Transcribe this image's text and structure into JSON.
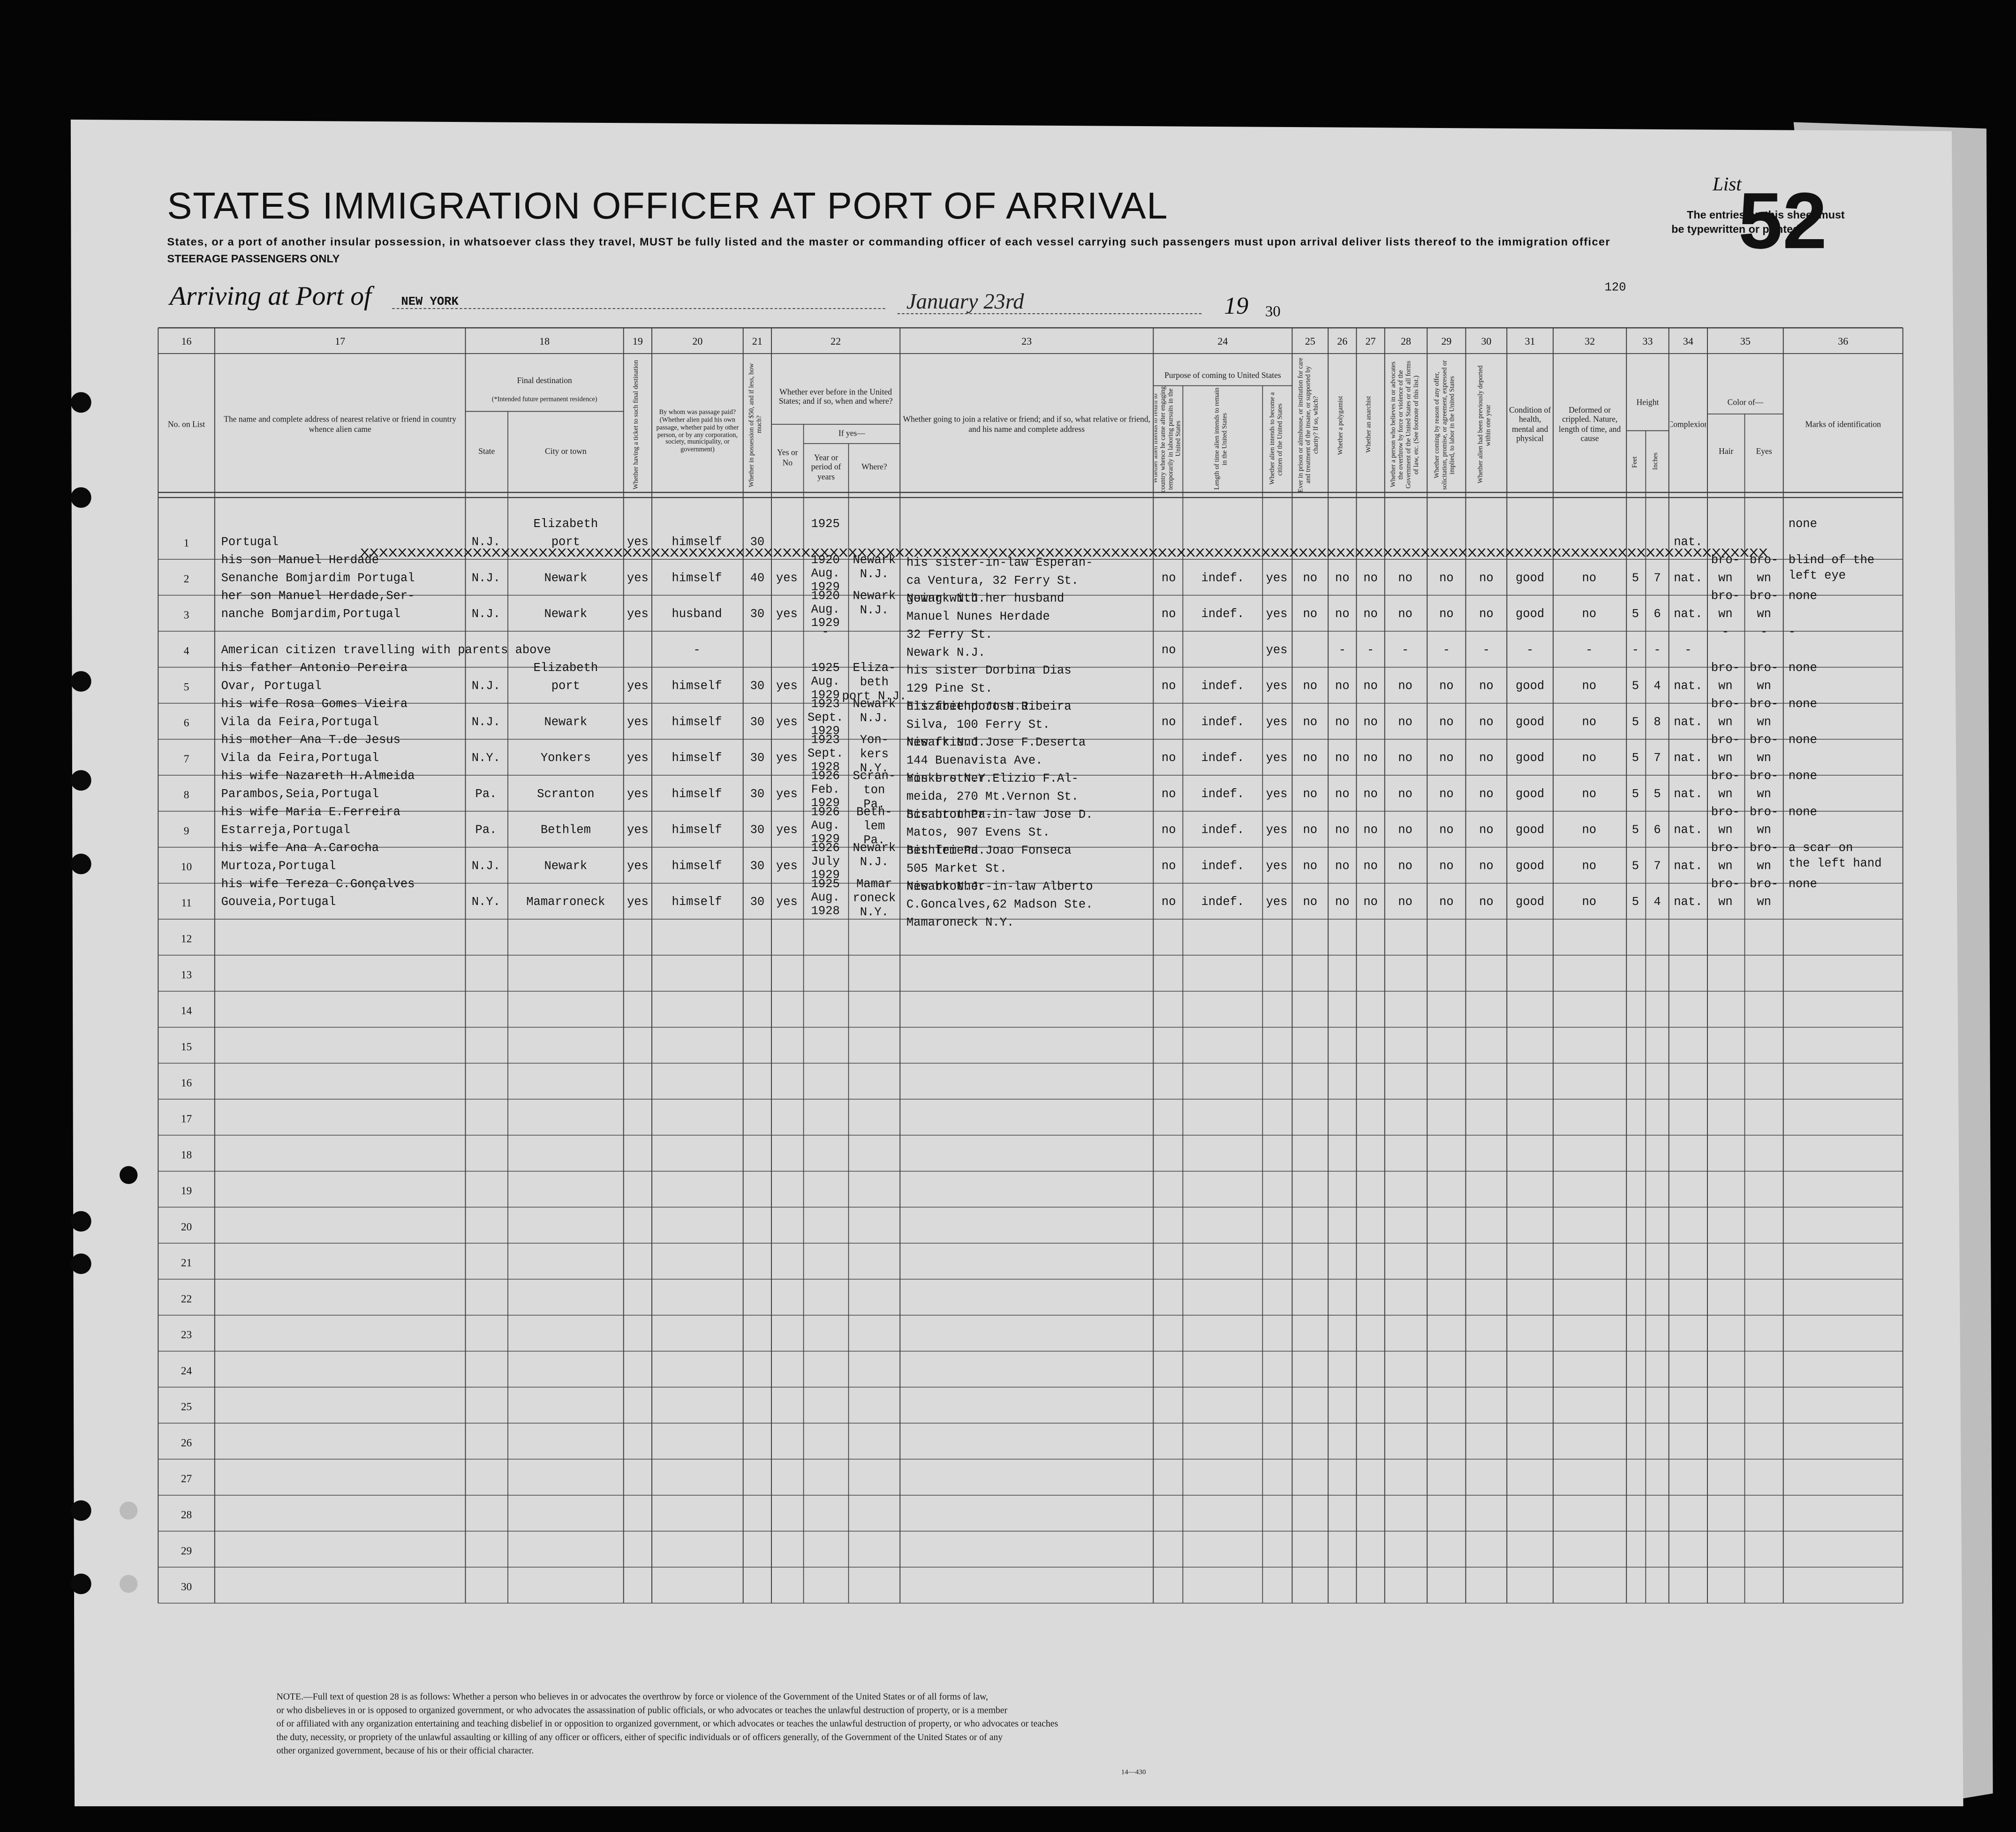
{
  "header": {
    "title": "STATES IMMIGRATION OFFICER AT PORT OF ARRIVAL",
    "subtitle": "States, or a port of another insular possession, in whatsoever class they travel, MUST be fully listed and the master or commanding officer of each vessel carrying such passengers must upon arrival deliver lists thereof to the immigration officer",
    "class_note": "STEERAGE PASSENGERS ONLY",
    "list_label": "List",
    "list_number": "52",
    "entries_note": [
      "The entries on this sheet must",
      "be typewritten or printed"
    ],
    "sheet_number": "120",
    "port_label": "Arriving at Port of",
    "port": "NEW YORK",
    "date": "January 23rd",
    "year_prefix": "19",
    "year_suffix": "30"
  },
  "columns": [
    {
      "number": "16",
      "heading": "No. on List"
    },
    {
      "number": "17",
      "heading": "The name and complete address of nearest relative or friend in country whence alien came"
    },
    {
      "number": "18",
      "heading": "Final destination",
      "sub": [
        "(*Intended future permanent residence)",
        "State",
        "City or town"
      ]
    },
    {
      "number": "19",
      "heading": "Whether having a ticket to such final destination"
    },
    {
      "number": "20",
      "heading": "By whom was passage paid? (Whether alien paid his own passage, whether paid by other person, or by any corporation, society, municipality, or government)"
    },
    {
      "number": "21",
      "heading": "Whether in possession of $50, and if less, how much?"
    },
    {
      "number": "22",
      "heading": "Whether ever before in the United States; and if so, when and where?",
      "sub": [
        "If yes—",
        "Yes or No",
        "Year or period of years",
        "Where?"
      ]
    },
    {
      "number": "23",
      "heading": "Whether going to join a relative or friend; and if so, what relative or friend, and his name and complete address"
    },
    {
      "number": "24",
      "heading": "Purpose of coming to United States",
      "sub": [
        "Whether alien intends to return to country whence he came after engaging temporarily in laboring pursuits in the United States",
        "Length of time alien intends to remain in the United States",
        "Whether alien intends to become a citizen of the United States"
      ]
    },
    {
      "number": "25",
      "heading": "Ever in prison or almshouse, or institution for care and treatment of the insane, or supported by charity? If so, which?"
    },
    {
      "number": "26",
      "heading": "Whether a polygamist"
    },
    {
      "number": "27",
      "heading": "Whether an anarchist"
    },
    {
      "number": "28",
      "heading": "Whether a person who believes in or advocates the overthrow by force or violence of the Government of the United States or of all forms of law, etc. (See footnote of this list.)"
    },
    {
      "number": "29",
      "heading": "Whether coming by reason of any offer, solicitation, promise, or agreement, expressed or implied, to labor in the United States"
    },
    {
      "number": "30",
      "heading": "Whether alien had been previously deported within one year"
    },
    {
      "number": "31",
      "heading": "Condition of health, mental and physical"
    },
    {
      "number": "32",
      "heading": "Deformed or crippled. Nature, length of time, and cause"
    },
    {
      "number": "33",
      "heading": "Height",
      "sub": [
        "Feet",
        "Inches"
      ]
    },
    {
      "number": "34",
      "heading": "Complexion"
    },
    {
      "number": "35",
      "heading": "Color of—",
      "sub": [
        "Hair",
        "Eyes"
      ]
    },
    {
      "number": "36",
      "heading": "Marks of identification"
    }
  ],
  "rows": [
    {
      "number": 1,
      "overtype": "XXXXXXXXXXXXXXXXXXXXXXXXXXXXXXXXXXXXXXXXXXXXXXXXXXXXXXXXXXXXXXXXXXXXXXXXXXXXXXXXXXXXXXXXXXXXXXXXXXXXXXXXXXXXXXXXXXXXXXXXXXXXXXXXXXXXXXXXXXXXXXXXXXXXXX",
      "cells": {
        "relative": [
          "Portugal"
        ],
        "state": "N.J.",
        "city": [
          "Elizabeth",
          "port"
        ],
        "ticket": "yes",
        "paid": "himself",
        "money": "30",
        "years": [
          "1925"
        ],
        "complexion": "nat.",
        "marks": [
          "none"
        ]
      }
    },
    {
      "number": 2,
      "cells": {
        "relative": [
          "his son Manuel Herdade",
          "Senanche Bomjardim Portugal"
        ],
        "state": "N.J.",
        "city": [
          "Newark"
        ],
        "ticket": "yes",
        "paid": "himself",
        "money": "40",
        "before": "yes",
        "years": [
          "1920",
          "Aug.",
          "1929"
        ],
        "where": [
          "Newark",
          "N.J."
        ],
        "joining": [
          "his sister-in-law Esperan-",
          "ca Ventura, 32 Ferry St.",
          "Newark N.J."
        ],
        "p24a": "no",
        "p24b": "indef.",
        "p24c": "yes",
        "q25": "no",
        "q26": "no",
        "q27": "no",
        "q28": "no",
        "q29": "no",
        "q30": "no",
        "health": "good",
        "deformed": "no",
        "feet": "5",
        "inches": "7",
        "complexion": "nat.",
        "hair": [
          "bro-",
          "wn"
        ],
        "eyes": [
          "bro-",
          "wn"
        ],
        "marks": [
          "blind of the",
          "left eye"
        ]
      }
    },
    {
      "number": 3,
      "cells": {
        "relative": [
          "her son Manuel Herdade,Ser-",
          "nanche Bomjardim,Portugal"
        ],
        "state": "N.J.",
        "city": [
          "Newark"
        ],
        "ticket": "yes",
        "paid": "husband",
        "money": "30",
        "before": "yes",
        "years": [
          "1920",
          "Aug.",
          "1929"
        ],
        "where": [
          "Newark",
          "N.J."
        ],
        "joining": [
          "going with her husband",
          "Manuel Nunes Herdade",
          "32 Ferry St.",
          "Newark N.J."
        ],
        "p24a": "no",
        "p24b": "indef.",
        "p24c": "yes",
        "q25": "no",
        "q26": "no",
        "q27": "no",
        "q28": "no",
        "q29": "no",
        "q30": "no",
        "health": "good",
        "deformed": "no",
        "feet": "5",
        "inches": "6",
        "complexion": "nat.",
        "hair": [
          "bro-",
          "wn"
        ],
        "eyes": [
          "bro-",
          "wn"
        ],
        "marks": [
          "none"
        ]
      }
    },
    {
      "number": 4,
      "cells": {
        "relative": [
          "American citizen travelling with parents above"
        ],
        "paid": "-",
        "years": [
          "-"
        ],
        "p24a": "no",
        "p24c": "yes",
        "q26": "-",
        "q27": "-",
        "q28": "-",
        "q29": "-",
        "q30": "-",
        "health": "-",
        "deformed": "-",
        "feet": "-",
        "inches": "-",
        "complexion": "-",
        "hair": [
          "-"
        ],
        "eyes": [
          "-"
        ],
        "marks": [
          "-"
        ]
      }
    },
    {
      "number": 5,
      "cells": {
        "relative": [
          "his father Antonio Pereira",
          "Ovar, Portugal"
        ],
        "state": "N.J.",
        "city": [
          "Elizabeth",
          "port"
        ],
        "ticket": "yes",
        "paid": "himself",
        "money": "30",
        "before": "yes",
        "years": [
          "1925",
          "Aug.",
          "1929"
        ],
        "where": [
          "Eliza-",
          "beth",
          "port N.J."
        ],
        "joining": [
          "his sister Dorbina Dias",
          "129 Pine St.",
          "Elizabethport N.J."
        ],
        "p24a": "no",
        "p24b": "indef.",
        "p24c": "yes",
        "q25": "no",
        "q26": "no",
        "q27": "no",
        "q28": "no",
        "q29": "no",
        "q30": "no",
        "health": "good",
        "deformed": "no",
        "feet": "5",
        "inches": "4",
        "complexion": "nat.",
        "hair": [
          "bro-",
          "wn"
        ],
        "eyes": [
          "bro-",
          "wn"
        ],
        "marks": [
          "none"
        ]
      }
    },
    {
      "number": 6,
      "cells": {
        "relative": [
          "his wife Rosa Gomes Vieira",
          "Vila da Feira,Portugal"
        ],
        "state": "N.J.",
        "city": [
          "Newark"
        ],
        "ticket": "yes",
        "paid": "himself",
        "money": "30",
        "before": "yes",
        "years": [
          "1923",
          "Sept.",
          "1929"
        ],
        "where": [
          "Newark",
          "N.J."
        ],
        "joining": [
          "his friend Jose Ribeira",
          "Silva, 100 Ferry St.",
          "Newark N.J."
        ],
        "p24a": "no",
        "p24b": "indef.",
        "p24c": "yes",
        "q25": "no",
        "q26": "no",
        "q27": "no",
        "q28": "no",
        "q29": "no",
        "q30": "no",
        "health": "good",
        "deformed": "no",
        "feet": "5",
        "inches": "8",
        "complexion": "nat.",
        "hair": [
          "bro-",
          "wn"
        ],
        "eyes": [
          "bro-",
          "wn"
        ],
        "marks": [
          "none"
        ]
      }
    },
    {
      "number": 7,
      "cells": {
        "relative": [
          "his mother Ana T.de Jesus",
          "Vila da Feira,Portugal"
        ],
        "state": "N.Y.",
        "city": [
          "Yonkers"
        ],
        "ticket": "yes",
        "paid": "himself",
        "money": "30",
        "before": "yes",
        "years": [
          "1923",
          "Sept.",
          "1928"
        ],
        "where": [
          "Yon-",
          "kers",
          "N.Y."
        ],
        "joining": [
          "his friend Jose F.Deserta",
          "144 Buenavista Ave.",
          "Yonkers N.Y."
        ],
        "p24a": "no",
        "p24b": "indef.",
        "p24c": "yes",
        "q25": "no",
        "q26": "no",
        "q27": "no",
        "q28": "no",
        "q29": "no",
        "q30": "no",
        "health": "good",
        "deformed": "no",
        "feet": "5",
        "inches": "7",
        "complexion": "nat.",
        "hair": [
          "bro-",
          "wn"
        ],
        "eyes": [
          "bro-",
          "wn"
        ],
        "marks": [
          "none"
        ]
      }
    },
    {
      "number": 8,
      "cells": {
        "relative": [
          "his wife Nazareth H.Almeida",
          "Parambos,Seia,Portugal"
        ],
        "state": "Pa.",
        "city": [
          "Scranton"
        ],
        "ticket": "yes",
        "paid": "himself",
        "money": "30",
        "before": "yes",
        "years": [
          "1926",
          "Feb.",
          "1929"
        ],
        "where": [
          "Scran-",
          "ton",
          "Pa."
        ],
        "joining": [
          "his brother Elizio F.Al-",
          "meida, 270 Mt.Vernon St.",
          "Scranton Pa."
        ],
        "p24a": "no",
        "p24b": "indef.",
        "p24c": "yes",
        "q25": "no",
        "q26": "no",
        "q27": "no",
        "q28": "no",
        "q29": "no",
        "q30": "no",
        "health": "good",
        "deformed": "no",
        "feet": "5",
        "inches": "5",
        "complexion": "nat.",
        "hair": [
          "bro-",
          "wn"
        ],
        "eyes": [
          "bro-",
          "wn"
        ],
        "marks": [
          "none"
        ]
      }
    },
    {
      "number": 9,
      "cells": {
        "relative": [
          "his wife Maria E.Ferreira",
          "Estarreja,Portugal"
        ],
        "state": "Pa.",
        "city": [
          "Bethlem"
        ],
        "ticket": "yes",
        "paid": "himself",
        "money": "30",
        "before": "yes",
        "years": [
          "1926",
          "Aug.",
          "1929"
        ],
        "where": [
          "Beth-",
          "lem",
          "Pa."
        ],
        "joining": [
          "his brother-in-law Jose D.",
          "Matos, 907 Evens St.",
          "Bethlem Pa."
        ],
        "p24a": "no",
        "p24b": "indef.",
        "p24c": "yes",
        "q25": "no",
        "q26": "no",
        "q27": "no",
        "q28": "no",
        "q29": "no",
        "q30": "no",
        "health": "good",
        "deformed": "no",
        "feet": "5",
        "inches": "6",
        "complexion": "nat.",
        "hair": [
          "bro-",
          "wn"
        ],
        "eyes": [
          "bro-",
          "wn"
        ],
        "marks": [
          "none"
        ]
      }
    },
    {
      "number": 10,
      "cells": {
        "relative": [
          "his wife Ana A.Carocha",
          "Murtoza,Portugal"
        ],
        "state": "N.J.",
        "city": [
          "Newark"
        ],
        "ticket": "yes",
        "paid": "himself",
        "money": "30",
        "before": "yes",
        "years": [
          "1926",
          "July",
          "1929"
        ],
        "where": [
          "Newark",
          "N.J."
        ],
        "joining": [
          "his friend Joao Fonseca",
          "505 Market St.",
          "Newark N.J."
        ],
        "p24a": "no",
        "p24b": "indef.",
        "p24c": "yes",
        "q25": "no",
        "q26": "no",
        "q27": "no",
        "q28": "no",
        "q29": "no",
        "q30": "no",
        "health": "good",
        "deformed": "no",
        "feet": "5",
        "inches": "7",
        "complexion": "nat.",
        "hair": [
          "bro-",
          "wn"
        ],
        "eyes": [
          "bro-",
          "wn"
        ],
        "marks": [
          "a scar on",
          "the left hand"
        ]
      }
    },
    {
      "number": 11,
      "cells": {
        "relative": [
          "his wife Tereza C.Gonçalves",
          "Gouveia,Portugal"
        ],
        "state": "N.Y.",
        "city": [
          "Mamarroneck"
        ],
        "ticket": "yes",
        "paid": "himself",
        "money": "30",
        "before": "yes",
        "years": [
          "1925",
          "Aug.",
          "1928"
        ],
        "where": [
          "Mamar",
          "roneck",
          "N.Y."
        ],
        "joining": [
          "his brother-in-law Alberto",
          "C.Goncalves,62 Madson Ste.",
          "Mamaroneck N.Y."
        ],
        "p24a": "no",
        "p24b": "indef.",
        "p24c": "yes",
        "q25": "no",
        "q26": "no",
        "q27": "no",
        "q28": "no",
        "q29": "no",
        "q30": "no",
        "health": "good",
        "deformed": "no",
        "feet": "5",
        "inches": "4",
        "complexion": "nat.",
        "hair": [
          "bro-",
          "wn"
        ],
        "eyes": [
          "bro-",
          "wn"
        ],
        "marks": [
          "none"
        ]
      }
    },
    {
      "number": 12
    },
    {
      "number": 13
    },
    {
      "number": 14
    },
    {
      "number": 15
    },
    {
      "number": 16
    },
    {
      "number": 17
    },
    {
      "number": 18
    },
    {
      "number": 19
    },
    {
      "number": 20
    },
    {
      "number": 21
    },
    {
      "number": 22
    },
    {
      "number": 23
    },
    {
      "number": 24
    },
    {
      "number": 25
    },
    {
      "number": 26
    },
    {
      "number": 27
    },
    {
      "number": 28
    },
    {
      "number": 29
    },
    {
      "number": 30
    }
  ],
  "footnote": {
    "lines": [
      "NOTE.—Full text of question 28 is as follows: Whether a person who believes in or advocates the overthrow by force or violence of the Government of the United States or of all forms of law,",
      "or who disbelieves in or is opposed to organized government, or who advocates the assassination of public officials, or who advocates or teaches the unlawful destruction of property, or is a member",
      "of or affiliated with any organization entertaining and teaching disbelief in or opposition to organized government, or which advocates or teaches the unlawful destruction of property, or who advocates or teaches",
      "the duty, necessity, or propriety of the unlawful assaulting or killing of any officer or officers, either of specific individuals or of officers generally, of the Government of the United States or of any",
      "other organized government, because of his or their official character."
    ],
    "form_number": "14—430"
  }
}
